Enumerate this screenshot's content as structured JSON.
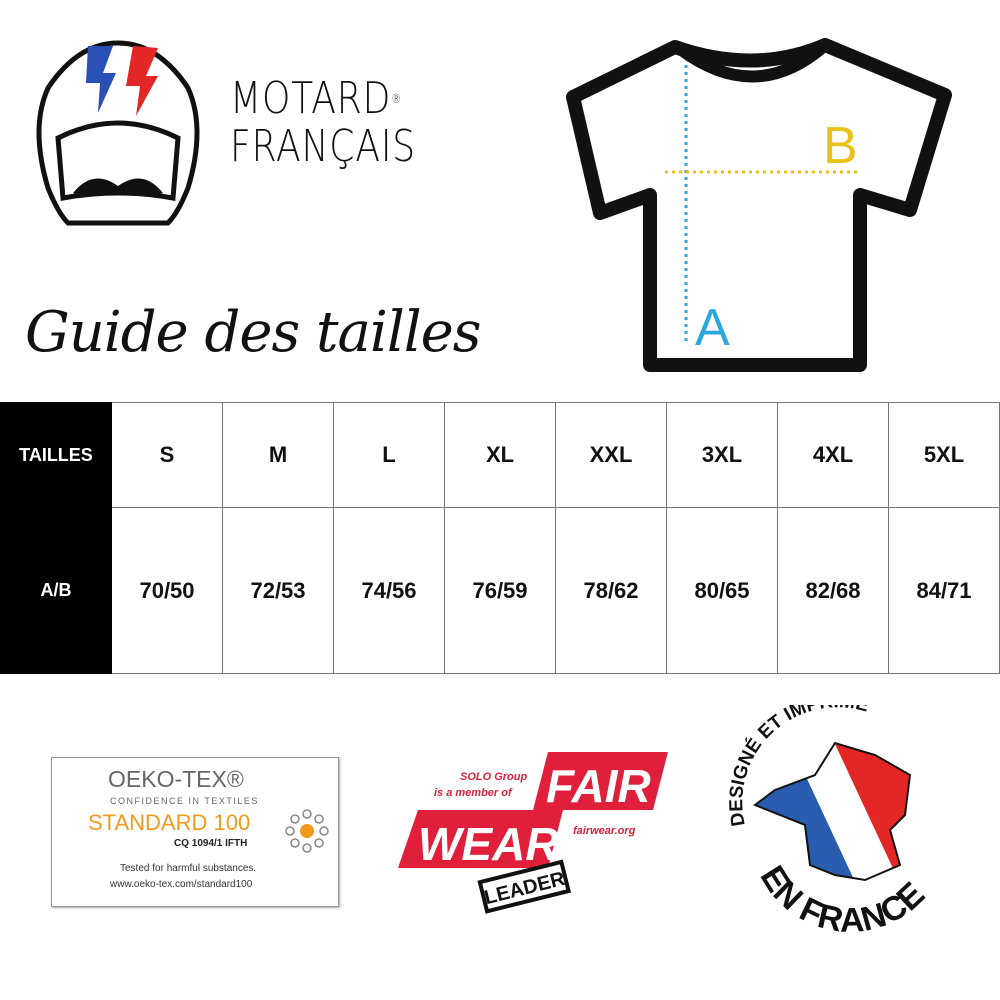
{
  "brand": {
    "line1": "MOTARD",
    "line2": "FRANÇAIS",
    "registered": "®"
  },
  "title": "Guide des tailles",
  "diagram": {
    "label_a": "A",
    "label_b": "B",
    "color_a": "#29a8e0",
    "color_b": "#e8c21a"
  },
  "table": {
    "row_headers": [
      "TAILLES",
      "A/B"
    ],
    "sizes": [
      "S",
      "M",
      "L",
      "XL",
      "XXL",
      "3XL",
      "4XL",
      "5XL"
    ],
    "measurements": [
      "70/50",
      "72/53",
      "74/56",
      "76/59",
      "78/62",
      "80/65",
      "82/68",
      "84/71"
    ]
  },
  "badges": {
    "oekotex": {
      "name": "OEKO-TEX®",
      "tagline": "CONFIDENCE IN TEXTILES",
      "standard": "STANDARD 100",
      "code": "CQ 1094/1 IFTH",
      "note": "Tested for harmful substances.",
      "url": "www.oeko-tex.com/standard100"
    },
    "fairwear": {
      "member_line1": "SOLO Group",
      "member_line2": "is a member of",
      "word1": "FAIR",
      "word2": "WEAR",
      "url": "fairwear.org",
      "level": "LEADER",
      "color": "#e0203a"
    },
    "france": {
      "top_text": "DESIGNÉ ET IMPRIMÉ",
      "bottom_text": "EN FRANCE",
      "colors": [
        "#2a5db0",
        "#ffffff",
        "#e32626"
      ]
    }
  }
}
